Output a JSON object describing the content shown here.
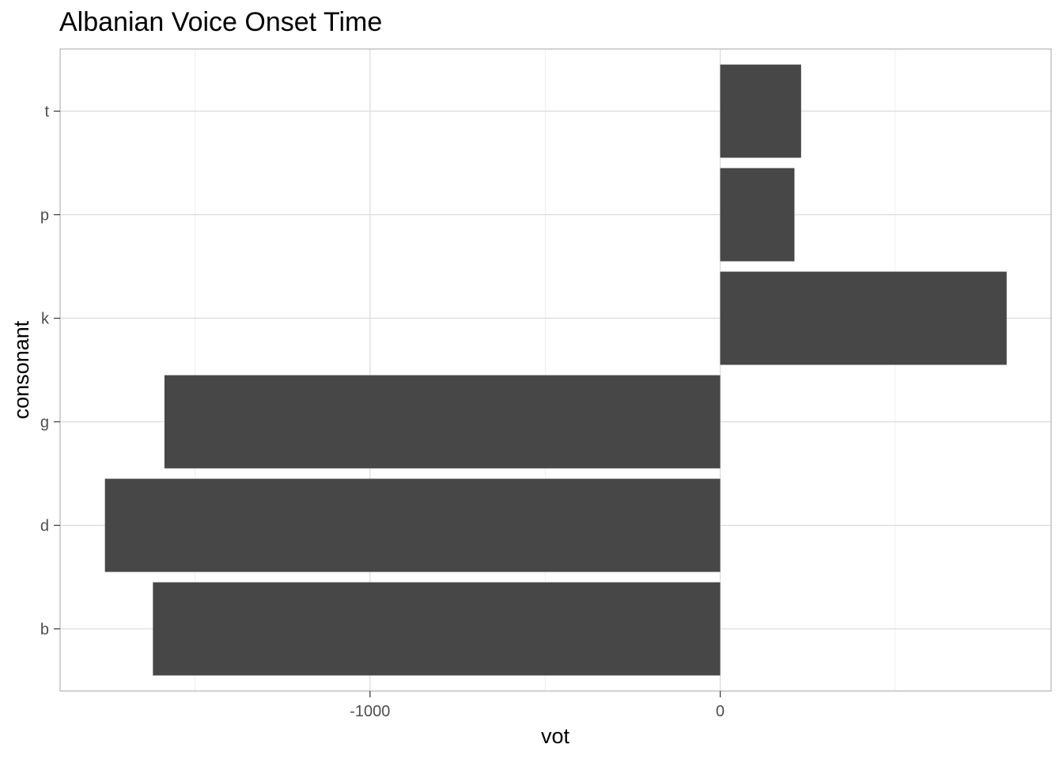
{
  "chart_data": {
    "type": "bar",
    "orientation": "horizontal",
    "title": "Albanian Voice Onset Time",
    "xlabel": "vot",
    "ylabel": "consonant",
    "categories": [
      "b",
      "d",
      "g",
      "k",
      "p",
      "t"
    ],
    "values": [
      -1620,
      -1757,
      -1587,
      818,
      212,
      231
    ],
    "xlim": [
      -1885,
      945
    ],
    "x_ticks": [
      -1000,
      0
    ],
    "x_tick_labels": [
      "-1000",
      "0"
    ],
    "grid": true,
    "bar_color": "#474747"
  }
}
